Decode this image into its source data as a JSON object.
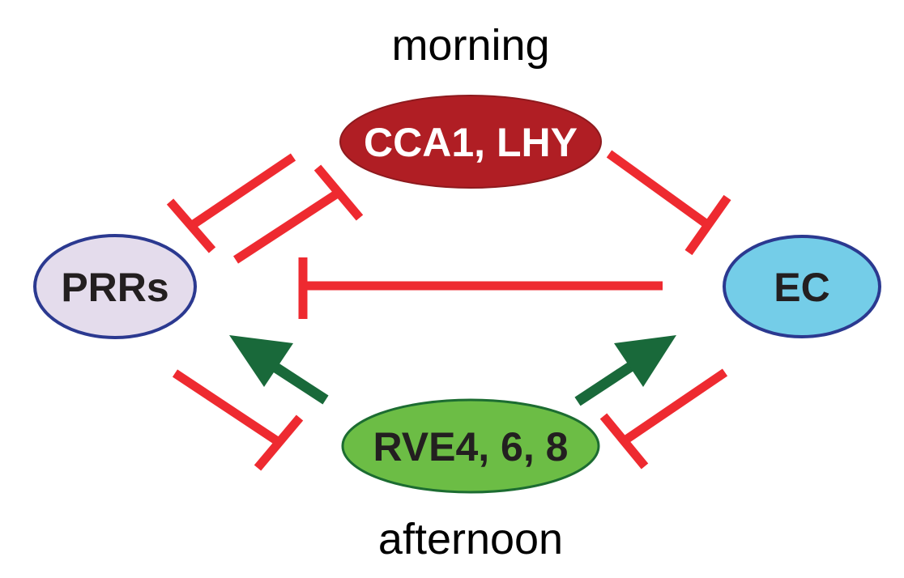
{
  "labels": {
    "top": "morning",
    "bottom": "afternoon"
  },
  "nodes": {
    "cca1_lhy": {
      "label": "CCA1, LHY",
      "fill": "#b01e24",
      "text_color": "#ffffff"
    },
    "prrs": {
      "label": "PRRs",
      "fill": "#e4dcec",
      "text_color": "#231f20"
    },
    "ec": {
      "label": "EC",
      "fill": "#74cde8",
      "text_color": "#231f20"
    },
    "rve": {
      "label": "RVE4, 6, 8",
      "fill": "#6cbd45",
      "text_color": "#231f20"
    }
  },
  "colors": {
    "repression": "#ee2a30",
    "activation": "#19693a",
    "outline_cca1": "#8e1a1e",
    "outline_prrs": "#2b3990",
    "outline_ec": "#2b3990",
    "outline_rve": "#1c6c31",
    "text": "#000000"
  },
  "edges": [
    {
      "from": "CCA1, LHY",
      "to": "PRRs",
      "type": "repression"
    },
    {
      "from": "PRRs",
      "to": "CCA1, LHY",
      "type": "repression"
    },
    {
      "from": "CCA1, LHY",
      "to": "EC",
      "type": "repression"
    },
    {
      "from": "EC",
      "to": "PRRs",
      "type": "repression"
    },
    {
      "from": "PRRs",
      "to": "RVE4, 6, 8",
      "type": "repression"
    },
    {
      "from": "EC",
      "to": "RVE4, 6, 8",
      "type": "repression"
    },
    {
      "from": "RVE4, 6, 8",
      "to": "PRRs",
      "type": "activation"
    },
    {
      "from": "RVE4, 6, 8",
      "to": "EC",
      "type": "activation"
    }
  ]
}
